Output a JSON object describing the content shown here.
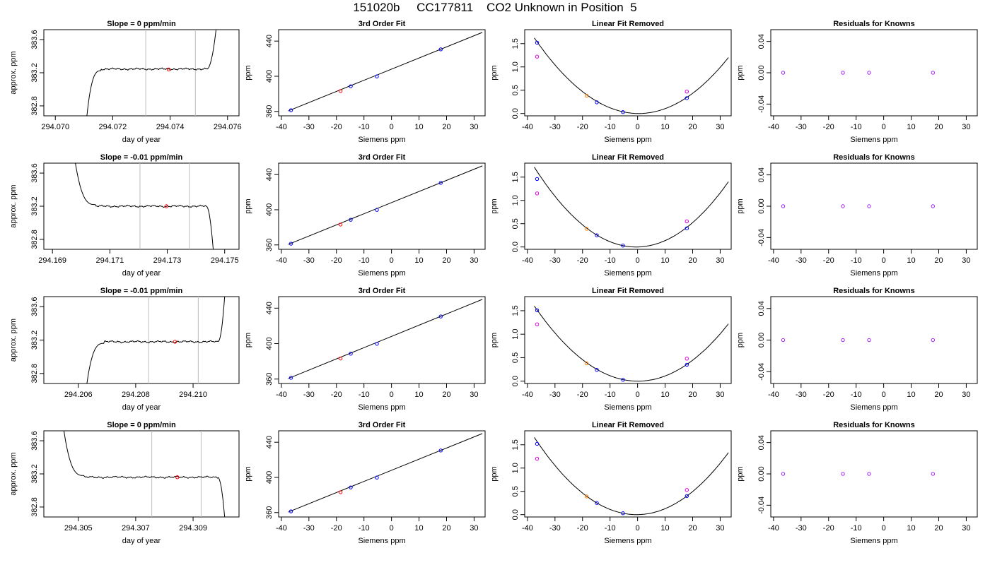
{
  "title": "151020b     CC177811    CO2 Unknown in Position  5",
  "colors": {
    "known": "#0000ff",
    "unknown": "#ff0000",
    "residual_known": "#a020f0",
    "prior_fit": "#e000e0",
    "orange": "#ff8000",
    "guide": "#bebebe",
    "line": "#000000"
  },
  "rows": [
    {
      "trace": {
        "title": "Slope =  0  ppm/min",
        "xlabel": "day of year",
        "ylabel": "approx. ppm",
        "xlim": [
          294.0696,
          294.0764
        ],
        "ylim": [
          382.68,
          383.72
        ],
        "xticks": [
          294.07,
          294.072,
          294.074,
          294.076
        ],
        "xtick_labels": [
          "294.070",
          "294.072",
          "294.074",
          "294.076"
        ],
        "yticks": [
          382.8,
          383.2,
          383.6
        ],
        "ytick_labels": [
          "382.8",
          "383.2",
          "383.6"
        ],
        "guides": [
          294.07315,
          294.07488
        ],
        "red_point": [
          294.07395,
          383.24
        ],
        "start": 294.0711,
        "ramp_end": 294.0716,
        "flat_end": 294.07528,
        "end": 294.0756,
        "level": 383.245
      },
      "fit": {
        "title": "3rd Order Fit",
        "xlabel": "Siemens ppm",
        "ylabel": "ppm",
        "xlim": [
          -41,
          34
        ],
        "ylim": [
          355,
          453
        ],
        "xticks": [
          -40,
          -30,
          -20,
          -10,
          0,
          10,
          20,
          30
        ],
        "yticks": [
          360,
          400,
          440
        ],
        "knowns": [
          [
            -36.5,
            361.4
          ],
          [
            -14.8,
            388.6
          ],
          [
            -5.3,
            399.8
          ],
          [
            17.9,
            430.6
          ]
        ],
        "unknown": [
          -18.5,
          383.2
        ],
        "line": [
          [
            -37.5,
            360.6
          ],
          [
            33,
            449.9
          ]
        ]
      },
      "linear": {
        "title": "Linear Fit Removed",
        "xlabel": "Siemens ppm",
        "ylabel": "ppm",
        "xlim": [
          -41,
          34
        ],
        "ylim": [
          -0.05,
          1.8
        ],
        "xticks": [
          -40,
          -30,
          -20,
          -10,
          0,
          10,
          20,
          30
        ],
        "yticks": [
          0.0,
          0.5,
          1.0,
          1.5
        ],
        "ytick_labels": [
          "0.0",
          "0.5",
          "1.0",
          "1.5"
        ],
        "knowns": [
          [
            -36.5,
            1.52
          ],
          [
            -14.8,
            0.24
          ],
          [
            -5.3,
            0.03
          ],
          [
            17.9,
            0.33
          ]
        ],
        "prior": [
          [
            -36.5,
            1.22
          ],
          [
            17.9,
            0.47
          ]
        ],
        "unknown": [
          -18.5,
          0.38
        ],
        "curve": {
          "a": 0.00113,
          "b": -0.0009,
          "c": 0.0,
          "from": -37.5,
          "to": 33
        }
      },
      "resid": {
        "title": "Residuals for Knowns",
        "xlabel": "Siemens ppm",
        "ylabel": "ppm",
        "xlim": [
          -41,
          34
        ],
        "ylim": [
          -0.055,
          0.055
        ],
        "xticks": [
          -40,
          -30,
          -20,
          -10,
          0,
          10,
          20,
          30
        ],
        "yticks": [
          -0.04,
          0.0,
          0.04
        ],
        "ytick_labels": [
          "-0.04",
          "0.00",
          "0.04"
        ],
        "knowns": [
          [
            -36.5,
            0.0
          ],
          [
            -14.8,
            0.0
          ],
          [
            -5.3,
            0.0
          ],
          [
            17.9,
            0.0
          ]
        ]
      }
    },
    {
      "trace": {
        "title": "Slope =  -0.01  ppm/min",
        "xlabel": "day of year",
        "ylabel": "approx. ppm",
        "xlim": [
          294.1687,
          294.1755
        ],
        "ylim": [
          382.68,
          383.72
        ],
        "xticks": [
          294.169,
          294.171,
          294.173,
          294.175
        ],
        "xtick_labels": [
          "294.169",
          "294.171",
          "294.173",
          "294.175"
        ],
        "yticks": [
          382.8,
          383.2,
          383.6
        ],
        "ytick_labels": [
          "382.8",
          "383.2",
          "383.6"
        ],
        "guides": [
          294.17205,
          294.17377
        ],
        "red_point": [
          294.17297,
          383.2
        ],
        "start": 294.1698,
        "ramp_end": 294.1705,
        "flat_end": 294.17436,
        "end": 294.1746,
        "level": 383.2
      },
      "fit": {
        "title": "3rd Order Fit",
        "xlabel": "Siemens ppm",
        "ylabel": "ppm",
        "xlim": [
          -41,
          34
        ],
        "ylim": [
          355,
          453
        ],
        "xticks": [
          -40,
          -30,
          -20,
          -10,
          0,
          10,
          20,
          30
        ],
        "yticks": [
          360,
          400,
          440
        ],
        "knowns": [
          [
            -36.5,
            361.4
          ],
          [
            -14.8,
            388.6
          ],
          [
            -5.3,
            399.8
          ],
          [
            17.9,
            430.6
          ]
        ],
        "unknown": [
          -18.5,
          383.2
        ],
        "line": [
          [
            -37.5,
            360.6
          ],
          [
            33,
            449.9
          ]
        ]
      },
      "linear": {
        "title": "Linear Fit Removed",
        "xlabel": "Siemens ppm",
        "ylabel": "ppm",
        "xlim": [
          -41,
          34
        ],
        "ylim": [
          -0.05,
          1.8
        ],
        "xticks": [
          -40,
          -30,
          -20,
          -10,
          0,
          10,
          20,
          30
        ],
        "yticks": [
          0.0,
          0.5,
          1.0,
          1.5
        ],
        "ytick_labels": [
          "0.0",
          "0.5",
          "1.0",
          "1.5"
        ],
        "knowns": [
          [
            -36.5,
            1.46
          ],
          [
            -14.8,
            0.25
          ],
          [
            -5.3,
            0.03
          ],
          [
            17.9,
            0.4
          ]
        ],
        "prior": [
          [
            -36.5,
            1.15
          ],
          [
            17.9,
            0.55
          ]
        ],
        "unknown": [
          -18.5,
          0.39
        ],
        "curve": {
          "a": 0.00125,
          "b": 0.0012,
          "c": 0.0,
          "from": -37.5,
          "to": 33
        }
      },
      "resid": {
        "title": "Residuals for Knowns",
        "xlabel": "Siemens ppm",
        "ylabel": "ppm",
        "xlim": [
          -41,
          34
        ],
        "ylim": [
          -0.055,
          0.055
        ],
        "xticks": [
          -40,
          -30,
          -20,
          -10,
          0,
          10,
          20,
          30
        ],
        "yticks": [
          -0.04,
          0.0,
          0.04
        ],
        "ytick_labels": [
          "-0.04",
          "0.00",
          "0.04"
        ],
        "knowns": [
          [
            -36.5,
            0.0
          ],
          [
            -14.8,
            0.0
          ],
          [
            -5.3,
            0.0
          ],
          [
            17.9,
            0.0
          ]
        ]
      }
    },
    {
      "trace": {
        "title": "Slope =  -0.01  ppm/min",
        "xlabel": "day of year",
        "ylabel": "approx. ppm",
        "xlim": [
          294.2048,
          294.2116
        ],
        "ylim": [
          382.68,
          383.72
        ],
        "xticks": [
          294.206,
          294.208,
          294.21
        ],
        "xtick_labels": [
          "294.206",
          "294.208",
          "294.210"
        ],
        "yticks": [
          382.8,
          383.2,
          383.6
        ],
        "ytick_labels": [
          "382.8",
          "383.2",
          "383.6"
        ],
        "guides": [
          294.20845,
          294.21018
        ],
        "red_point": [
          294.20937,
          383.18
        ],
        "start": 294.2063,
        "ramp_end": 294.2069,
        "flat_end": 294.21087,
        "end": 294.2111,
        "level": 383.18
      },
      "fit": {
        "title": "3rd Order Fit",
        "xlabel": "Siemens ppm",
        "ylabel": "ppm",
        "xlim": [
          -41,
          34
        ],
        "ylim": [
          355,
          453
        ],
        "xticks": [
          -40,
          -30,
          -20,
          -10,
          0,
          10,
          20,
          30
        ],
        "yticks": [
          360,
          400,
          440
        ],
        "knowns": [
          [
            -36.5,
            361.4
          ],
          [
            -14.8,
            388.6
          ],
          [
            -5.3,
            399.8
          ],
          [
            17.9,
            430.6
          ]
        ],
        "unknown": [
          -18.5,
          383.2
        ],
        "line": [
          [
            -37.5,
            360.6
          ],
          [
            33,
            449.9
          ]
        ]
      },
      "linear": {
        "title": "Linear Fit Removed",
        "xlabel": "Siemens ppm",
        "ylabel": "ppm",
        "xlim": [
          -41,
          34
        ],
        "ylim": [
          -0.05,
          1.8
        ],
        "xticks": [
          -40,
          -30,
          -20,
          -10,
          0,
          10,
          20,
          30
        ],
        "yticks": [
          0.0,
          0.5,
          1.0,
          1.5
        ],
        "ytick_labels": [
          "0.0",
          "0.5",
          "1.0",
          "1.5"
        ],
        "knowns": [
          [
            -36.5,
            1.51
          ],
          [
            -14.8,
            0.24
          ],
          [
            -5.3,
            0.03
          ],
          [
            17.9,
            0.35
          ]
        ],
        "prior": [
          [
            -36.5,
            1.21
          ],
          [
            17.9,
            0.48
          ]
        ],
        "unknown": [
          -18.5,
          0.38
        ],
        "curve": {
          "a": 0.00113,
          "b": -0.0003,
          "c": 0.0,
          "from": -37.5,
          "to": 33
        }
      },
      "resid": {
        "title": "Residuals for Knowns",
        "xlabel": "Siemens ppm",
        "ylabel": "ppm",
        "xlim": [
          -41,
          34
        ],
        "ylim": [
          -0.055,
          0.055
        ],
        "xticks": [
          -40,
          -30,
          -20,
          -10,
          0,
          10,
          20,
          30
        ],
        "yticks": [
          -0.04,
          0.0,
          0.04
        ],
        "ytick_labels": [
          "-0.04",
          "0.00",
          "0.04"
        ],
        "knowns": [
          [
            -36.5,
            0.0
          ],
          [
            -14.8,
            0.0
          ],
          [
            -5.3,
            0.0
          ],
          [
            17.9,
            0.0
          ]
        ]
      }
    },
    {
      "trace": {
        "title": "Slope =  0  ppm/min",
        "xlabel": "day of year",
        "ylabel": "approx. ppm",
        "xlim": [
          294.3038,
          294.3106
        ],
        "ylim": [
          382.68,
          383.72
        ],
        "xticks": [
          294.305,
          294.307,
          294.309
        ],
        "xtick_labels": [
          "294.305",
          "294.307",
          "294.309"
        ],
        "yticks": [
          382.8,
          383.2,
          383.6
        ],
        "ytick_labels": [
          "382.8",
          "383.2",
          "383.6"
        ],
        "guides": [
          294.30756,
          294.30928
        ],
        "red_point": [
          294.30845,
          383.16
        ],
        "start": 294.3045,
        "ramp_end": 294.3052,
        "flat_end": 294.30986,
        "end": 294.3101,
        "level": 383.16
      },
      "fit": {
        "title": "3rd Order Fit",
        "xlabel": "Siemens ppm",
        "ylabel": "ppm",
        "xlim": [
          -41,
          34
        ],
        "ylim": [
          355,
          453
        ],
        "xticks": [
          -40,
          -30,
          -20,
          -10,
          0,
          10,
          20,
          30
        ],
        "yticks": [
          360,
          400,
          440
        ],
        "knowns": [
          [
            -36.5,
            361.4
          ],
          [
            -14.8,
            388.6
          ],
          [
            -5.3,
            399.8
          ],
          [
            17.9,
            430.6
          ]
        ],
        "unknown": [
          -18.5,
          383.2
        ],
        "line": [
          [
            -37.5,
            360.6
          ],
          [
            33,
            449.9
          ]
        ]
      },
      "linear": {
        "title": "Linear Fit Removed",
        "xlabel": "Siemens ppm",
        "ylabel": "ppm",
        "xlim": [
          -41,
          34
        ],
        "ylim": [
          -0.05,
          1.8
        ],
        "xticks": [
          -40,
          -30,
          -20,
          -10,
          0,
          10,
          20,
          30
        ],
        "yticks": [
          0.0,
          0.5,
          1.0,
          1.5
        ],
        "ytick_labels": [
          "0.0",
          "0.5",
          "1.0",
          "1.5"
        ],
        "knowns": [
          [
            -36.5,
            1.52
          ],
          [
            -14.8,
            0.25
          ],
          [
            -5.3,
            0.03
          ],
          [
            17.9,
            0.4
          ]
        ],
        "prior": [
          [
            -36.5,
            1.2
          ],
          [
            17.9,
            0.53
          ]
        ],
        "unknown": [
          -18.5,
          0.39
        ],
        "curve": {
          "a": 0.0012,
          "b": 0.0008,
          "c": 0.0,
          "from": -37.5,
          "to": 33
        }
      },
      "resid": {
        "title": "Residuals for Knowns",
        "xlabel": "Siemens ppm",
        "ylabel": "ppm",
        "xlim": [
          -41,
          34
        ],
        "ylim": [
          -0.055,
          0.055
        ],
        "xticks": [
          -40,
          -30,
          -20,
          -10,
          0,
          10,
          20,
          30
        ],
        "yticks": [
          -0.04,
          0.0,
          0.04
        ],
        "ytick_labels": [
          "-0.04",
          "0.00",
          "0.04"
        ],
        "knowns": [
          [
            -36.5,
            0.0
          ],
          [
            -14.8,
            0.0
          ],
          [
            -5.3,
            0.0
          ],
          [
            17.9,
            0.0
          ]
        ]
      }
    }
  ],
  "chart_data": [
    {
      "type": "line",
      "panel": "row1-trace",
      "title": "Slope =  0  ppm/min",
      "xlabel": "day of year",
      "ylabel": "approx. ppm",
      "ylim": [
        382.68,
        383.72
      ],
      "series": [
        {
          "values": "CO2 trace ~383.24 ppm plateau"
        }
      ]
    },
    {
      "type": "scatter",
      "panel": "fit",
      "title": "3rd Order Fit",
      "xlabel": "Siemens ppm",
      "ylabel": "ppm",
      "x": [
        -36.5,
        -14.8,
        -5.3,
        17.9
      ],
      "y": [
        361.4,
        388.6,
        399.8,
        430.6
      ]
    },
    {
      "type": "scatter",
      "panel": "linear",
      "title": "Linear Fit Removed",
      "xlabel": "Siemens ppm",
      "ylabel": "ppm",
      "x": [
        -36.5,
        -18.5,
        -14.8,
        -5.3,
        17.9
      ],
      "y": [
        1.52,
        0.38,
        0.24,
        0.03,
        0.33
      ]
    },
    {
      "type": "scatter",
      "panel": "resid",
      "title": "Residuals for Knowns",
      "xlabel": "Siemens ppm",
      "ylabel": "ppm",
      "x": [
        -36.5,
        -14.8,
        -5.3,
        17.9
      ],
      "y": [
        0.0,
        0.0,
        0.0,
        0.0
      ]
    }
  ]
}
